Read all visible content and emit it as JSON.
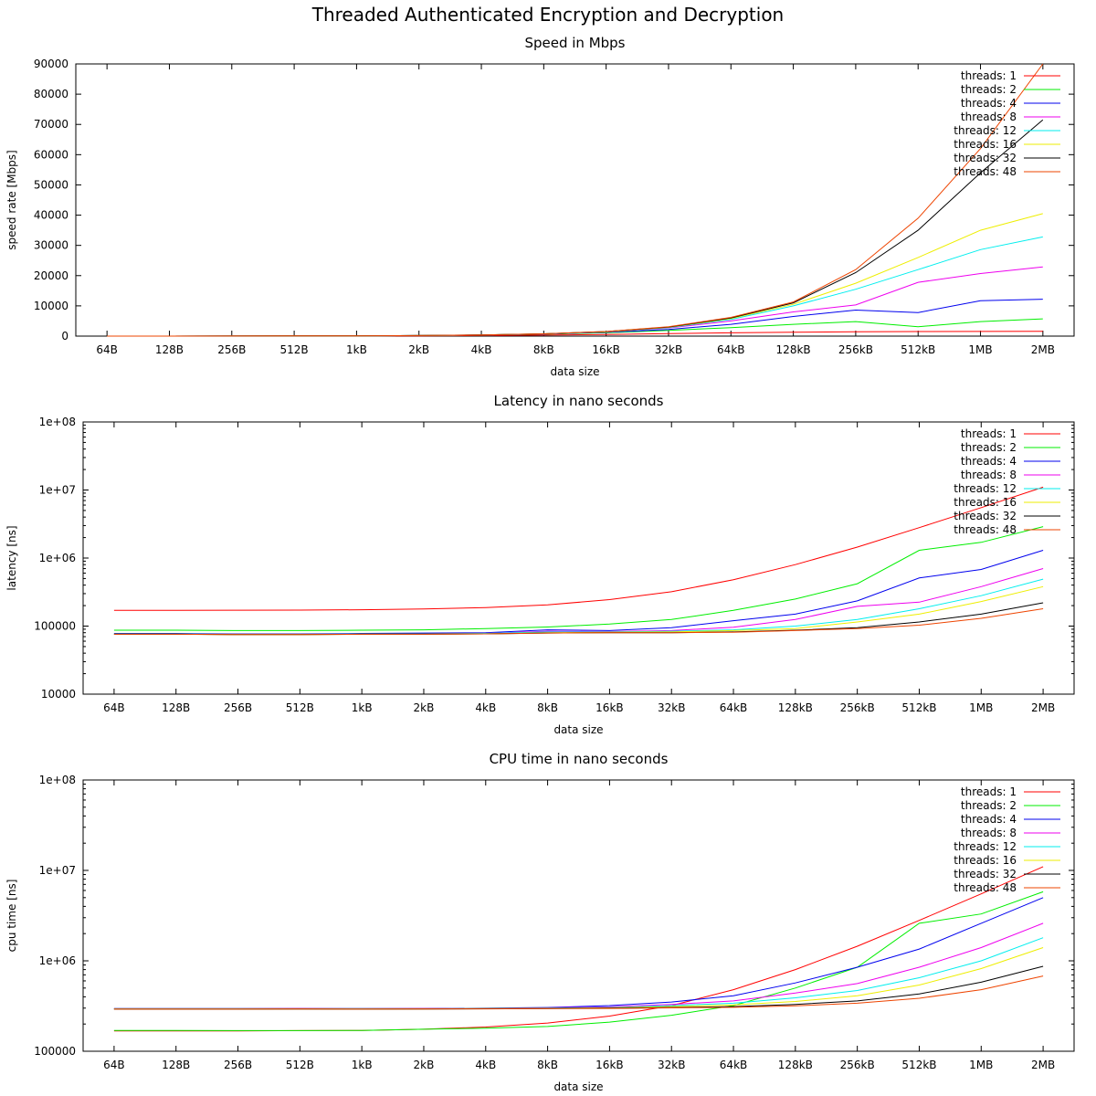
{
  "page": {
    "title": "Threaded Authenticated Encryption and Decryption"
  },
  "legend_position": "top-right",
  "series_colors": [
    "#ff0000",
    "#00ee00",
    "#0000ee",
    "#ee00ee",
    "#00eeee",
    "#eeee00",
    "#000000",
    "#ee4400"
  ],
  "chart_data": [
    {
      "type": "line",
      "title": "Speed in Mbps",
      "xlabel": "data size",
      "ylabel": "speed rate [Mbps]",
      "y_scale": "linear",
      "ylim": [
        0,
        90000
      ],
      "y_ticks": [
        0,
        10000,
        20000,
        30000,
        40000,
        50000,
        60000,
        70000,
        80000,
        90000
      ],
      "y_tick_labels": [
        "0",
        "10000",
        "20000",
        "30000",
        "40000",
        "50000",
        "60000",
        "70000",
        "80000",
        "90000"
      ],
      "grid": false,
      "categories": [
        "64B",
        "128B",
        "256B",
        "512B",
        "1kB",
        "2kB",
        "4kB",
        "8kB",
        "16kB",
        "32kB",
        "64kB",
        "128kB",
        "256kB",
        "512kB",
        "1MB",
        "2MB"
      ],
      "series": [
        {
          "name": "threads: 1",
          "values": [
            3,
            6,
            12,
            25,
            49,
            95,
            180,
            320,
            540,
            820,
            1080,
            1280,
            1420,
            1500,
            1550,
            1560
          ]
        },
        {
          "name": "threads: 2",
          "values": [
            6,
            12,
            24,
            48,
            95,
            185,
            350,
            640,
            1100,
            1900,
            2800,
            3900,
            4800,
            3100,
            4800,
            5700
          ]
        },
        {
          "name": "threads: 4",
          "values": [
            6,
            12,
            24,
            48,
            95,
            190,
            360,
            700,
            1250,
            2200,
            3900,
            6500,
            8600,
            7800,
            11700,
            12200
          ]
        },
        {
          "name": "threads: 8",
          "values": [
            6,
            12,
            24,
            48,
            95,
            190,
            360,
            720,
            1350,
            2700,
            5000,
            8000,
            10300,
            17800,
            20700,
            22900
          ]
        },
        {
          "name": "threads: 12",
          "values": [
            6,
            12,
            24,
            48,
            95,
            190,
            370,
            730,
            1400,
            2800,
            5500,
            10000,
            15500,
            22000,
            28600,
            32800
          ]
        },
        {
          "name": "threads: 16",
          "values": [
            6,
            12,
            24,
            48,
            95,
            190,
            370,
            740,
            1450,
            2900,
            5800,
            10500,
            17500,
            26000,
            35000,
            40500
          ]
        },
        {
          "name": "threads: 32",
          "values": [
            6,
            12,
            24,
            48,
            95,
            190,
            380,
            750,
            1500,
            3000,
            6000,
            11000,
            21000,
            35000,
            54000,
            71500
          ]
        },
        {
          "name": "threads: 48",
          "values": [
            6,
            12,
            24,
            48,
            95,
            190,
            380,
            750,
            1500,
            3100,
            6200,
            11300,
            22000,
            39000,
            62000,
            90000
          ]
        }
      ]
    },
    {
      "type": "line",
      "title": "Latency in nano seconds",
      "xlabel": "data size",
      "ylabel": "latency [ns]",
      "y_scale": "log",
      "ylim": [
        10000,
        100000000
      ],
      "y_ticks": [
        10000,
        100000,
        1000000,
        10000000,
        100000000
      ],
      "y_tick_labels": [
        "10000",
        "100000",
        "1e+06",
        "1e+07",
        "1e+08"
      ],
      "grid": false,
      "categories": [
        "64B",
        "128B",
        "256B",
        "512B",
        "1kB",
        "2kB",
        "4kB",
        "8kB",
        "16kB",
        "32kB",
        "64kB",
        "128kB",
        "256kB",
        "512kB",
        "1MB",
        "2MB"
      ],
      "series": [
        {
          "name": "threads: 1",
          "values": [
            170000,
            170000,
            171000,
            172000,
            174000,
            178000,
            187000,
            205000,
            245000,
            320000,
            480000,
            800000,
            1450000,
            2800000,
            5500000,
            11000000
          ]
        },
        {
          "name": "threads: 2",
          "values": [
            87000,
            87000,
            86000,
            86000,
            87000,
            88000,
            92000,
            97000,
            107000,
            125000,
            170000,
            250000,
            420000,
            1300000,
            1700000,
            2900000
          ]
        },
        {
          "name": "threads: 4",
          "values": [
            78000,
            78000,
            77000,
            77000,
            78000,
            79000,
            80000,
            88000,
            86000,
            95000,
            120000,
            150000,
            235000,
            510000,
            680000,
            1300000
          ]
        },
        {
          "name": "threads: 8",
          "values": [
            77000,
            77000,
            76000,
            76000,
            77000,
            77000,
            78000,
            84000,
            83000,
            86000,
            96000,
            125000,
            195000,
            225000,
            380000,
            700000
          ]
        },
        {
          "name": "threads: 12",
          "values": [
            77000,
            77000,
            76000,
            76000,
            77000,
            77000,
            78000,
            82000,
            82000,
            84000,
            88000,
            100000,
            125000,
            180000,
            280000,
            490000
          ]
        },
        {
          "name": "threads: 16",
          "values": [
            76000,
            76000,
            75000,
            75000,
            76000,
            76000,
            77000,
            80000,
            81000,
            82000,
            86000,
            92000,
            115000,
            150000,
            230000,
            380000
          ]
        },
        {
          "name": "threads: 32",
          "values": [
            76000,
            76000,
            75000,
            75000,
            76000,
            76000,
            77000,
            79000,
            80000,
            80000,
            82000,
            87000,
            95000,
            115000,
            150000,
            220000
          ]
        },
        {
          "name": "threads: 48",
          "values": [
            76000,
            76000,
            75000,
            75000,
            76000,
            76000,
            77000,
            79000,
            80000,
            80000,
            81000,
            86000,
            92000,
            103000,
            130000,
            180000
          ]
        }
      ]
    },
    {
      "type": "line",
      "title": "CPU time in nano seconds",
      "xlabel": "data size",
      "ylabel": "cpu time [ns]",
      "y_scale": "log",
      "ylim": [
        100000,
        100000000
      ],
      "y_ticks": [
        100000,
        1000000,
        10000000,
        100000000
      ],
      "y_tick_labels": [
        "100000",
        "1e+06",
        "1e+07",
        "1e+08"
      ],
      "grid": false,
      "categories": [
        "64B",
        "128B",
        "256B",
        "512B",
        "1kB",
        "2kB",
        "4kB",
        "8kB",
        "16kB",
        "32kB",
        "64kB",
        "128kB",
        "256kB",
        "512kB",
        "1MB",
        "2MB"
      ],
      "series": [
        {
          "name": "threads: 1",
          "values": [
            168000,
            168000,
            168000,
            169000,
            170000,
            175000,
            185000,
            205000,
            245000,
            320000,
            480000,
            800000,
            1450000,
            2800000,
            5500000,
            11000000
          ]
        },
        {
          "name": "threads: 2",
          "values": [
            170000,
            170000,
            169000,
            169000,
            170000,
            175000,
            180000,
            188000,
            210000,
            250000,
            320000,
            500000,
            850000,
            2600000,
            3300000,
            5800000
          ]
        },
        {
          "name": "threads: 4",
          "values": [
            296000,
            296000,
            296000,
            297000,
            296000,
            297000,
            300000,
            305000,
            320000,
            350000,
            410000,
            570000,
            850000,
            1350000,
            2600000,
            5000000
          ]
        },
        {
          "name": "threads: 8",
          "values": [
            295000,
            295000,
            295000,
            296000,
            295000,
            296000,
            298000,
            302000,
            310000,
            330000,
            360000,
            440000,
            560000,
            850000,
            1400000,
            2600000
          ]
        },
        {
          "name": "threads: 12",
          "values": [
            294000,
            294000,
            294000,
            295000,
            294000,
            295000,
            297000,
            300000,
            305000,
            320000,
            340000,
            390000,
            470000,
            650000,
            1000000,
            1800000
          ]
        },
        {
          "name": "threads: 16",
          "values": [
            293000,
            293000,
            293000,
            294000,
            293000,
            294000,
            296000,
            298000,
            302000,
            312000,
            325000,
            355000,
            410000,
            540000,
            820000,
            1400000
          ]
        },
        {
          "name": "threads: 32",
          "values": [
            292000,
            292000,
            292000,
            293000,
            292000,
            293000,
            295000,
            297000,
            300000,
            305000,
            312000,
            330000,
            360000,
            430000,
            580000,
            870000
          ]
        },
        {
          "name": "threads: 48",
          "values": [
            292000,
            292000,
            292000,
            293000,
            292000,
            293000,
            294000,
            296000,
            298000,
            302000,
            306000,
            318000,
            340000,
            385000,
            480000,
            680000
          ]
        }
      ]
    }
  ]
}
